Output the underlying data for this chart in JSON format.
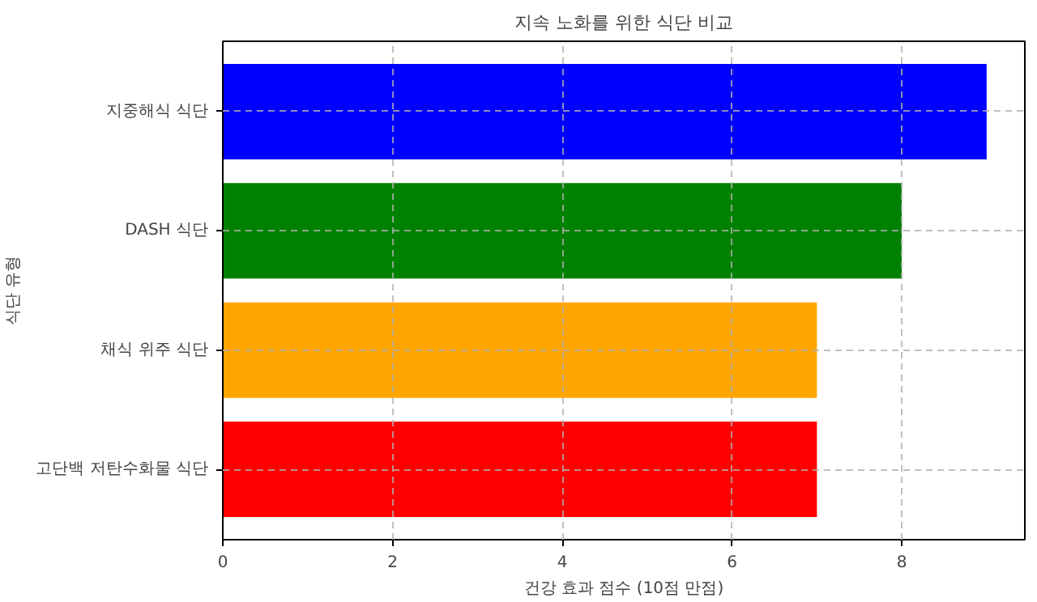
{
  "chart_data": {
    "type": "bar",
    "orientation": "horizontal",
    "title": "지속 노화를 위한 식단 비교",
    "xlabel": "건강 효과 점수 (10점 만점)",
    "ylabel": "식단 유형",
    "categories": [
      "지중해식 식단",
      "DASH 식단",
      "채식 위주 식단",
      "고단백 저탄수화물 식단"
    ],
    "values": [
      9,
      8,
      7,
      7
    ],
    "colors": [
      "#0000ff",
      "#008000",
      "#ffa500",
      "#ff0000"
    ],
    "xlim": [
      0,
      9.45
    ],
    "xticks": [
      0,
      2,
      4,
      6,
      8
    ],
    "grid": true
  }
}
